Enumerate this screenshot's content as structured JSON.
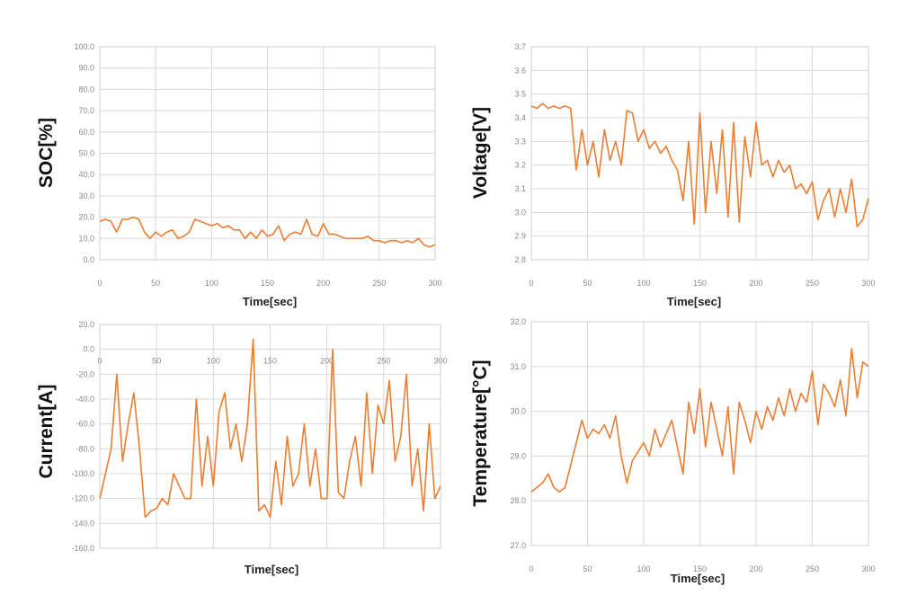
{
  "chart_data": [
    {
      "type": "line",
      "ylabel": "SOC[%]",
      "xlabel": "Time[sec]",
      "xlim": [
        0,
        300
      ],
      "xticks": [
        0,
        50,
        100,
        150,
        200,
        250,
        300
      ],
      "ylim": [
        0,
        100
      ],
      "ystep": 10,
      "ydecimals": 1,
      "grid": true,
      "color": "#ED7D31",
      "x_start": 0,
      "x_step": 5,
      "values": [
        18,
        19,
        18,
        13,
        19,
        19,
        20,
        19,
        13,
        10,
        13,
        11,
        13,
        14,
        10,
        11,
        13,
        19,
        18,
        17,
        16,
        17,
        15,
        16,
        14,
        14,
        10,
        13,
        10,
        14,
        11,
        12,
        16,
        9,
        12,
        13,
        12,
        19,
        12,
        11,
        17,
        12,
        12,
        11,
        10,
        10,
        10,
        10,
        11,
        9,
        9,
        8,
        9,
        9,
        8,
        9,
        8,
        10,
        7,
        6,
        7
      ]
    },
    {
      "type": "line",
      "ylabel": "Voltage[V]",
      "xlabel": "Time[sec]",
      "xlim": [
        0,
        300
      ],
      "xticks": [
        0,
        50,
        100,
        150,
        200,
        250,
        300
      ],
      "ylim": [
        2.8,
        3.7
      ],
      "ystep": 0.1,
      "ydecimals": 1,
      "grid": true,
      "color": "#ED7D31",
      "x_start": 0,
      "x_step": 5,
      "values": [
        3.45,
        3.44,
        3.46,
        3.44,
        3.45,
        3.44,
        3.45,
        3.44,
        3.18,
        3.35,
        3.2,
        3.3,
        3.15,
        3.35,
        3.22,
        3.3,
        3.2,
        3.43,
        3.42,
        3.3,
        3.35,
        3.27,
        3.3,
        3.25,
        3.28,
        3.22,
        3.18,
        3.05,
        3.3,
        2.95,
        3.42,
        3.0,
        3.3,
        3.08,
        3.35,
        2.98,
        3.38,
        2.96,
        3.32,
        3.15,
        3.38,
        3.2,
        3.22,
        3.15,
        3.22,
        3.17,
        3.2,
        3.1,
        3.12,
        3.08,
        3.13,
        2.97,
        3.05,
        3.1,
        2.98,
        3.1,
        3.0,
        3.14,
        2.94,
        2.97,
        3.06
      ]
    },
    {
      "type": "line",
      "ylabel": "Current[A]",
      "xlabel": "Time[sec]",
      "xlim": [
        0,
        300
      ],
      "xticks": [
        0,
        50,
        100,
        150,
        200,
        250,
        300
      ],
      "ylim": [
        -160,
        20
      ],
      "ystep": 20,
      "ydecimals": 1,
      "grid": true,
      "color": "#ED7D31",
      "x_start": 0,
      "x_step": 5,
      "values": [
        -120,
        -100,
        -80,
        -20,
        -90,
        -60,
        -35,
        -80,
        -135,
        -130,
        -128,
        -120,
        -125,
        -100,
        -110,
        -120,
        -120,
        -40,
        -110,
        -70,
        -110,
        -50,
        -35,
        -80,
        -60,
        -90,
        -60,
        8,
        -130,
        -125,
        -135,
        -90,
        -125,
        -70,
        -110,
        -100,
        -60,
        -110,
        -80,
        -120,
        -120,
        0,
        -115,
        -120,
        -90,
        -70,
        -110,
        -35,
        -100,
        -45,
        -60,
        -25,
        -90,
        -70,
        -20,
        -110,
        -80,
        -130,
        -60,
        -120,
        -110
      ]
    },
    {
      "type": "line",
      "ylabel": "Temperature[°C]",
      "xlabel": "Time[sec]",
      "xlim": [
        0,
        300
      ],
      "xticks": [
        0,
        50,
        100,
        150,
        200,
        250,
        300
      ],
      "ylim": [
        27,
        32
      ],
      "ystep": 1,
      "ydecimals": 1,
      "grid": true,
      "color": "#ED7D31",
      "x_start": 0,
      "x_step": 5,
      "values": [
        28.2,
        28.3,
        28.4,
        28.6,
        28.3,
        28.2,
        28.3,
        28.8,
        29.3,
        29.8,
        29.4,
        29.6,
        29.5,
        29.7,
        29.4,
        29.9,
        29.0,
        28.4,
        28.9,
        29.1,
        29.3,
        29.0,
        29.6,
        29.2,
        29.5,
        29.8,
        29.2,
        28.6,
        30.2,
        29.5,
        30.5,
        29.2,
        30.2,
        29.6,
        29.0,
        30.1,
        28.6,
        30.2,
        29.8,
        29.3,
        30.0,
        29.6,
        30.1,
        29.8,
        30.3,
        29.9,
        30.5,
        30.0,
        30.4,
        30.2,
        30.9,
        29.7,
        30.6,
        30.4,
        30.1,
        30.7,
        29.9,
        31.4,
        30.3,
        31.1,
        31.0
      ]
    }
  ]
}
